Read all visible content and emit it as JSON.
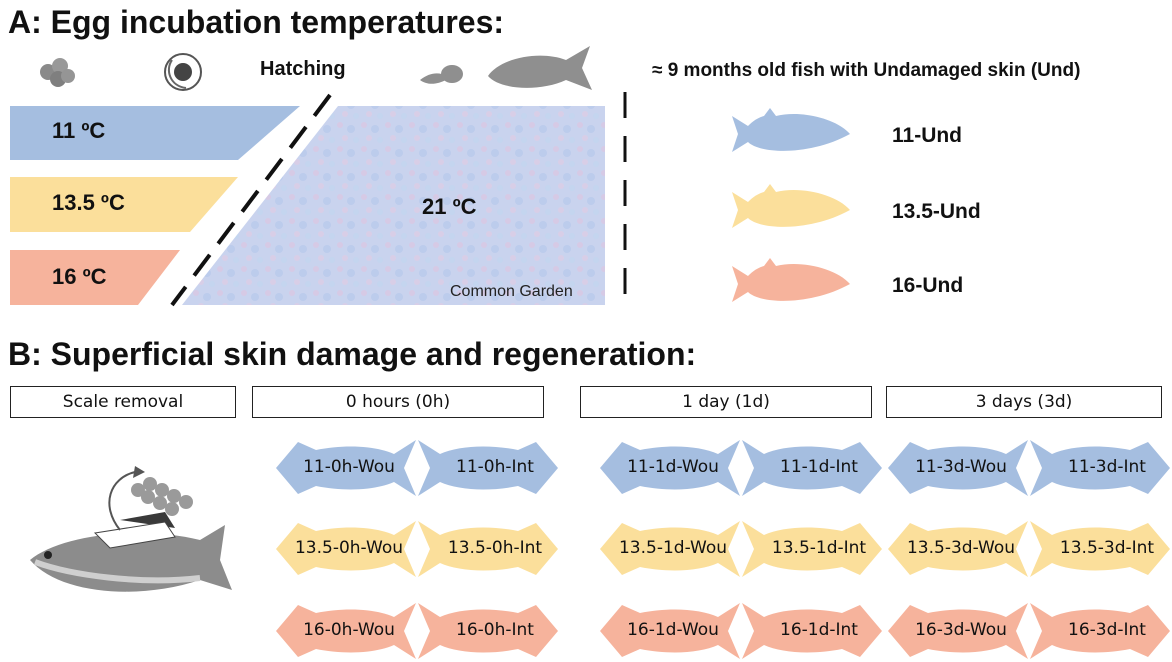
{
  "colors": {
    "c11": "#a5bee0",
    "c135": "#fbdf9b",
    "c16": "#f6b39c",
    "grey": "#8f8f8f",
    "text": "#111111"
  },
  "sectionA": {
    "title": "A: Egg incubation temperatures:",
    "hatching": "Hatching",
    "months_label": "≈ 9 months old fish with Undamaged skin (Und)",
    "temps": [
      "11 ºC",
      "13.5 ºC",
      "16 ºC"
    ],
    "garden_temp": "21 ºC",
    "garden_label": "Common Garden",
    "und": [
      "11-Und",
      "13.5-Und",
      "16-Und"
    ]
  },
  "sectionB": {
    "title": "B: Superficial skin damage and regeneration:",
    "headers": [
      "Scale removal",
      "0 hours (0h)",
      "1 day (1d)",
      "3 days (3d)"
    ],
    "groups": [
      {
        "wou": [
          "11-0h-Wou",
          "13.5-0h-Wou",
          "16-0h-Wou"
        ],
        "int": [
          "11-0h-Int",
          "13.5-0h-Int",
          "16-0h-Int"
        ]
      },
      {
        "wou": [
          "11-1d-Wou",
          "13.5-1d-Wou",
          "16-1d-Wou"
        ],
        "int": [
          "11-1d-Int",
          "13.5-1d-Int",
          "16-1d-Int"
        ]
      },
      {
        "wou": [
          "11-3d-Wou",
          "13.5-3d-Wou",
          "16-3d-Wou"
        ],
        "int": [
          "11-3d-Int",
          "13.5-3d-Int",
          "16-3d-Int"
        ]
      }
    ]
  }
}
